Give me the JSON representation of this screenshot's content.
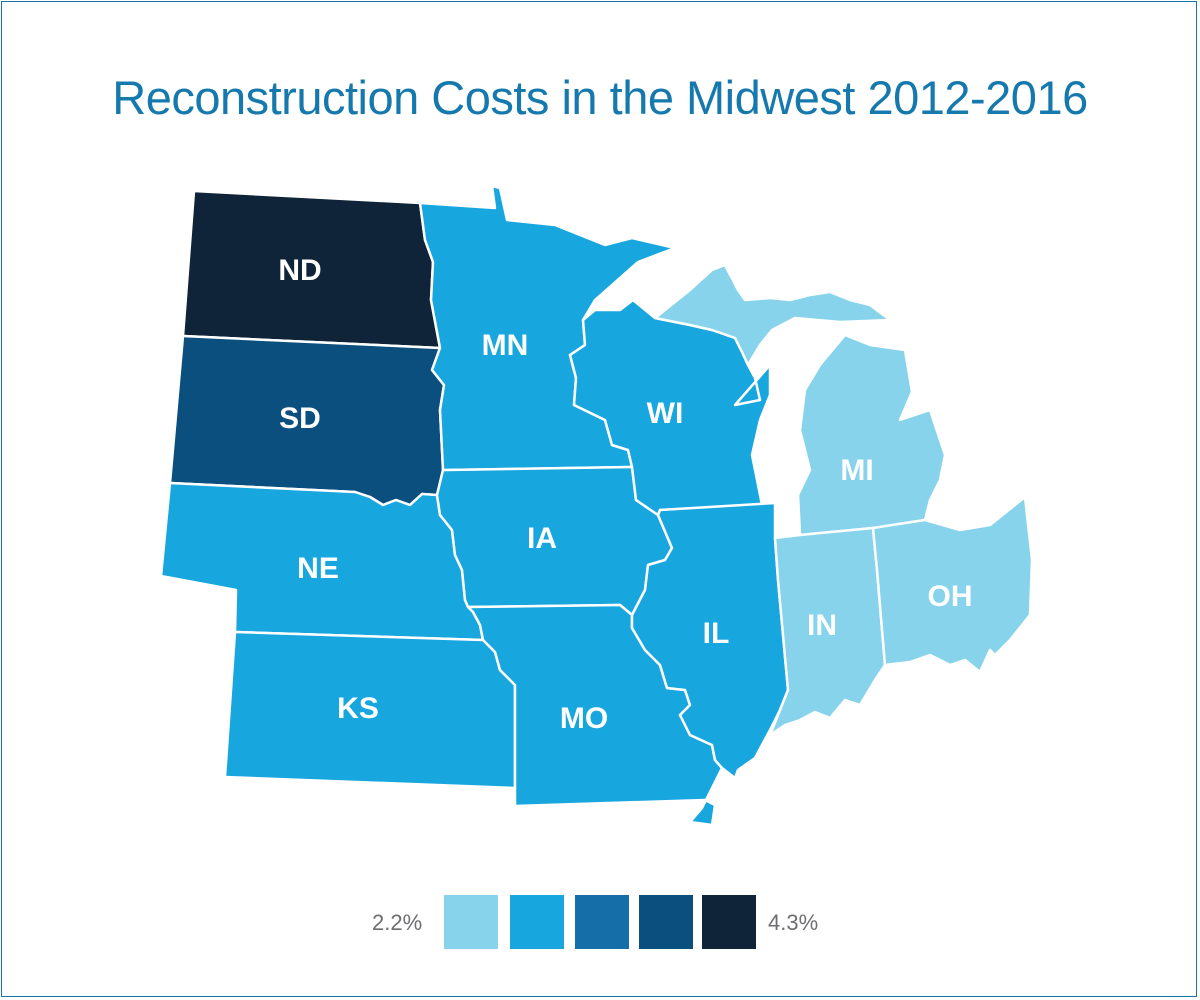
{
  "title": "Reconstruction Costs in the Midwest 2012-2016",
  "colors": {
    "level1": "#87d3ec",
    "level2": "#18a6df",
    "level3": "#166ea8",
    "level4": "#0a4f7e",
    "level5": "#0f2438",
    "title": "#1579ae",
    "border": "#ffffff"
  },
  "states": [
    {
      "abbr": "ND",
      "level": 5
    },
    {
      "abbr": "SD",
      "level": 4
    },
    {
      "abbr": "NE",
      "level": 2
    },
    {
      "abbr": "KS",
      "level": 2
    },
    {
      "abbr": "MN",
      "level": 2
    },
    {
      "abbr": "IA",
      "level": 2
    },
    {
      "abbr": "MO",
      "level": 2
    },
    {
      "abbr": "WI",
      "level": 2
    },
    {
      "abbr": "IL",
      "level": 2
    },
    {
      "abbr": "MI",
      "level": 1
    },
    {
      "abbr": "IN",
      "level": 1
    },
    {
      "abbr": "OH",
      "level": 1
    }
  ],
  "legend": {
    "min_label": "2.2%",
    "max_label": "4.3%",
    "levels": 5
  }
}
